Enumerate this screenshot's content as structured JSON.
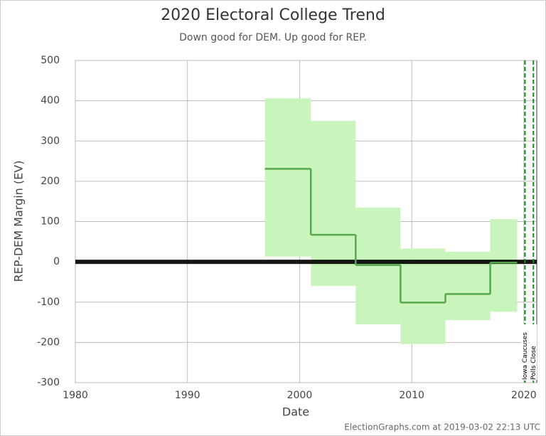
{
  "chart_data": {
    "type": "step-band",
    "title": "2020 Electoral College Trend",
    "subtitle": "Down good for DEM. Up good for REP.",
    "x_label": "Date",
    "y_label": "REP-DEM Margin (EV)",
    "footer": "ElectionGraphs.com at 2019-03-02 22:13 UTC",
    "x": [
      1996.9,
      2001,
      2005,
      2009,
      2013,
      2017
    ],
    "x_end": [
      2001,
      2005,
      2009,
      2013,
      2017,
      2019.4
    ],
    "values": [
      231,
      67,
      -8,
      -101,
      -80,
      -2
    ],
    "low": [
      13,
      -60,
      -155,
      -204,
      -145,
      -124
    ],
    "high": [
      406,
      350,
      135,
      33,
      25,
      106
    ],
    "color": "#55a84a",
    "band_color": "#c6f4b8",
    "xlim": [
      1980,
      2021.15
    ],
    "xticks": [
      1980,
      1990,
      2000,
      2010,
      2020
    ],
    "ylim": [
      -300,
      500
    ],
    "yticks": [
      -300,
      -200,
      -100,
      0,
      100,
      200,
      300,
      400,
      500
    ],
    "grid": true,
    "events": [
      {
        "x": 2020.1,
        "label": "Iowa Caucuses"
      },
      {
        "x": 2020.85,
        "label": "Polls Close"
      }
    ]
  }
}
